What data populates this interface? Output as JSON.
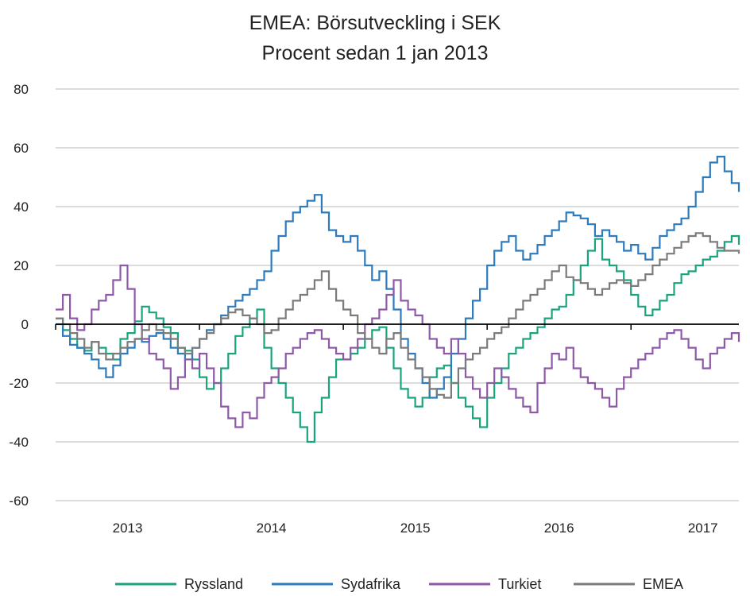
{
  "chart_data": {
    "type": "line",
    "title": "EMEA: Börsutveckling i SEK",
    "subtitle": "Procent sedan 1 jan 2013",
    "ylim": [
      -60,
      80
    ],
    "yticks": [
      "80",
      "60",
      "40",
      "20",
      "0",
      "-20",
      "-40",
      "-60"
    ],
    "ytick_values": [
      80,
      60,
      40,
      20,
      0,
      -20,
      -40,
      -60
    ],
    "xlim": [
      2013.0,
      2017.75
    ],
    "xticks": [
      {
        "label": "2013",
        "value": 2013.5
      },
      {
        "label": "2014",
        "value": 2014.5
      },
      {
        "label": "2015",
        "value": 2015.5
      },
      {
        "label": "2016",
        "value": 2016.5
      },
      {
        "label": "2017",
        "value": 2017.5
      }
    ],
    "year_boundaries": [
      2014,
      2015,
      2016,
      2017
    ],
    "grid": true,
    "zero_line": true,
    "legend_position": "bottom",
    "series": [
      {
        "name": "Ryssland",
        "color": "#1aa47e",
        "x": [
          2013.0,
          2013.05,
          2013.1,
          2013.15,
          2013.2,
          2013.25,
          2013.3,
          2013.35,
          2013.4,
          2013.45,
          2013.5,
          2013.55,
          2013.6,
          2013.65,
          2013.7,
          2013.75,
          2013.8,
          2013.85,
          2013.9,
          2013.95,
          2014.0,
          2014.05,
          2014.1,
          2014.15,
          2014.2,
          2014.25,
          2014.3,
          2014.35,
          2014.4,
          2014.45,
          2014.5,
          2014.55,
          2014.6,
          2014.65,
          2014.7,
          2014.75,
          2014.8,
          2014.85,
          2014.9,
          2014.95,
          2015.0,
          2015.05,
          2015.1,
          2015.15,
          2015.2,
          2015.25,
          2015.3,
          2015.35,
          2015.4,
          2015.45,
          2015.5,
          2015.55,
          2015.6,
          2015.65,
          2015.7,
          2015.75,
          2015.8,
          2015.85,
          2015.9,
          2015.95,
          2016.0,
          2016.05,
          2016.1,
          2016.15,
          2016.2,
          2016.25,
          2016.3,
          2016.35,
          2016.4,
          2016.45,
          2016.5,
          2016.55,
          2016.6,
          2016.65,
          2016.7,
          2016.75,
          2016.8,
          2016.85,
          2016.9,
          2016.95,
          2017.0,
          2017.05,
          2017.1,
          2017.15,
          2017.2,
          2017.25,
          2017.3,
          2017.35,
          2017.4,
          2017.45,
          2017.5,
          2017.55,
          2017.6,
          2017.65,
          2017.7,
          2017.75
        ],
        "y": [
          2,
          -2,
          -5,
          -8,
          -9,
          -6,
          -8,
          -10,
          -12,
          -5,
          -3,
          1,
          6,
          4,
          2,
          -1,
          -3,
          -8,
          -9,
          -12,
          -18,
          -22,
          -20,
          -15,
          -10,
          -4,
          -1,
          2,
          5,
          -8,
          -15,
          -20,
          -25,
          -30,
          -35,
          -40,
          -30,
          -25,
          -18,
          -12,
          -12,
          -10,
          -8,
          -5,
          -2,
          -1,
          -8,
          -15,
          -22,
          -25,
          -28,
          -25,
          -18,
          -15,
          -14,
          -20,
          -25,
          -28,
          -32,
          -35,
          -25,
          -20,
          -15,
          -10,
          -8,
          -5,
          -3,
          -1,
          2,
          5,
          6,
          10,
          15,
          20,
          25,
          29,
          22,
          20,
          18,
          15,
          10,
          6,
          3,
          5,
          8,
          10,
          14,
          17,
          18,
          20,
          22,
          23,
          25,
          28,
          30,
          27
        ],
        "values": [
          2,
          -2,
          -5,
          -8,
          -9,
          -6,
          -8,
          -10,
          -12,
          -5,
          -3,
          1,
          6,
          4,
          2,
          -1,
          -3,
          -8,
          -9,
          -12,
          -18,
          -22,
          -20,
          -15,
          -10,
          -4,
          -1,
          2,
          5,
          -8,
          -15,
          -20,
          -25,
          -30,
          -35,
          -40,
          -30,
          -25,
          -18,
          -12,
          -12,
          -10,
          -8,
          -5,
          -2,
          -1,
          -8,
          -15,
          -22,
          -25,
          -28,
          -25,
          -18,
          -15,
          -14,
          -20,
          -25,
          -28,
          -32,
          -35,
          -25,
          -20,
          -15,
          -10,
          -8,
          -5,
          -3,
          -1,
          2,
          5,
          6,
          10,
          15,
          20,
          25,
          29,
          22,
          20,
          18,
          15,
          10,
          6,
          3,
          5,
          8,
          10,
          14,
          17,
          18,
          20,
          22,
          23,
          25,
          28,
          30,
          27
        ]
      },
      {
        "name": "Sydafrika",
        "color": "#2d7bbd",
        "x": [
          2013.0,
          2013.05,
          2013.1,
          2013.15,
          2013.2,
          2013.25,
          2013.3,
          2013.35,
          2013.4,
          2013.45,
          2013.5,
          2013.55,
          2013.6,
          2013.65,
          2013.7,
          2013.75,
          2013.8,
          2013.85,
          2013.9,
          2013.95,
          2014.0,
          2014.05,
          2014.1,
          2014.15,
          2014.2,
          2014.25,
          2014.3,
          2014.35,
          2014.4,
          2014.45,
          2014.5,
          2014.55,
          2014.6,
          2014.65,
          2014.7,
          2014.75,
          2014.8,
          2014.85,
          2014.9,
          2014.95,
          2015.0,
          2015.05,
          2015.1,
          2015.15,
          2015.2,
          2015.25,
          2015.3,
          2015.35,
          2015.4,
          2015.45,
          2015.5,
          2015.55,
          2015.6,
          2015.65,
          2015.7,
          2015.75,
          2015.8,
          2015.85,
          2015.9,
          2015.95,
          2016.0,
          2016.05,
          2016.1,
          2016.15,
          2016.2,
          2016.25,
          2016.3,
          2016.35,
          2016.4,
          2016.45,
          2016.5,
          2016.55,
          2016.6,
          2016.65,
          2016.7,
          2016.75,
          2016.8,
          2016.85,
          2016.9,
          2016.95,
          2017.0,
          2017.05,
          2017.1,
          2017.15,
          2017.2,
          2017.25,
          2017.3,
          2017.35,
          2017.4,
          2017.45,
          2017.5,
          2017.55,
          2017.6,
          2017.65,
          2017.7,
          2017.75
        ],
        "y": [
          0,
          -4,
          -7,
          -8,
          -10,
          -12,
          -15,
          -18,
          -14,
          -10,
          -8,
          -5,
          -6,
          -4,
          -3,
          -5,
          -8,
          -10,
          -12,
          -8,
          -5,
          -2,
          0,
          3,
          6,
          8,
          10,
          12,
          15,
          18,
          25,
          30,
          35,
          38,
          40,
          42,
          44,
          38,
          32,
          30,
          28,
          30,
          25,
          20,
          15,
          18,
          12,
          5,
          -5,
          -10,
          -15,
          -20,
          -25,
          -22,
          -18,
          -10,
          -5,
          2,
          8,
          12,
          20,
          25,
          28,
          30,
          25,
          22,
          24,
          27,
          30,
          32,
          35,
          38,
          37,
          36,
          34,
          30,
          32,
          30,
          28,
          25,
          27,
          24,
          22,
          26,
          30,
          32,
          34,
          36,
          40,
          45,
          50,
          55,
          57,
          52,
          48,
          45
        ],
        "values": [
          0,
          -4,
          -7,
          -8,
          -10,
          -12,
          -15,
          -18,
          -14,
          -10,
          -8,
          -5,
          -6,
          -4,
          -3,
          -5,
          -8,
          -10,
          -12,
          -8,
          -5,
          -2,
          0,
          3,
          6,
          8,
          10,
          12,
          15,
          18,
          25,
          30,
          35,
          38,
          40,
          42,
          44,
          38,
          32,
          30,
          28,
          30,
          25,
          20,
          15,
          18,
          12,
          5,
          -5,
          -10,
          -15,
          -20,
          -25,
          -22,
          -18,
          -10,
          -5,
          2,
          8,
          12,
          20,
          25,
          28,
          30,
          25,
          22,
          24,
          27,
          30,
          32,
          35,
          38,
          37,
          36,
          34,
          30,
          32,
          30,
          28,
          25,
          27,
          24,
          22,
          26,
          30,
          32,
          34,
          36,
          40,
          45,
          50,
          55,
          57,
          52,
          48,
          45
        ]
      },
      {
        "name": "Turkiet",
        "color": "#8e5aa8",
        "x": [
          2013.0,
          2013.05,
          2013.1,
          2013.15,
          2013.2,
          2013.25,
          2013.3,
          2013.35,
          2013.4,
          2013.45,
          2013.5,
          2013.55,
          2013.6,
          2013.65,
          2013.7,
          2013.75,
          2013.8,
          2013.85,
          2013.9,
          2013.95,
          2014.0,
          2014.05,
          2014.1,
          2014.15,
          2014.2,
          2014.25,
          2014.3,
          2014.35,
          2014.4,
          2014.45,
          2014.5,
          2014.55,
          2014.6,
          2014.65,
          2014.7,
          2014.75,
          2014.8,
          2014.85,
          2014.9,
          2014.95,
          2015.0,
          2015.05,
          2015.1,
          2015.15,
          2015.2,
          2015.25,
          2015.3,
          2015.35,
          2015.4,
          2015.45,
          2015.5,
          2015.55,
          2015.6,
          2015.65,
          2015.7,
          2015.75,
          2015.8,
          2015.85,
          2015.9,
          2015.95,
          2016.0,
          2016.05,
          2016.1,
          2016.15,
          2016.2,
          2016.25,
          2016.3,
          2016.35,
          2016.4,
          2016.45,
          2016.5,
          2016.55,
          2016.6,
          2016.65,
          2016.7,
          2016.75,
          2016.8,
          2016.85,
          2016.9,
          2016.95,
          2017.0,
          2017.05,
          2017.1,
          2017.15,
          2017.2,
          2017.25,
          2017.3,
          2017.35,
          2017.4,
          2017.45,
          2017.5,
          2017.55,
          2017.6,
          2017.65,
          2017.7,
          2017.75
        ],
        "y": [
          5,
          10,
          2,
          -2,
          0,
          5,
          8,
          10,
          15,
          20,
          12,
          0,
          -5,
          -10,
          -12,
          -15,
          -22,
          -18,
          -12,
          -15,
          -10,
          -15,
          -20,
          -28,
          -32,
          -35,
          -30,
          -32,
          -25,
          -20,
          -18,
          -15,
          -10,
          -8,
          -5,
          -3,
          -2,
          -5,
          -8,
          -10,
          -12,
          -8,
          -5,
          0,
          2,
          5,
          10,
          15,
          8,
          5,
          3,
          0,
          -5,
          -8,
          -10,
          -5,
          -10,
          -18,
          -22,
          -25,
          -20,
          -15,
          -18,
          -22,
          -25,
          -28,
          -30,
          -20,
          -15,
          -10,
          -12,
          -8,
          -15,
          -18,
          -20,
          -22,
          -25,
          -28,
          -22,
          -18,
          -15,
          -12,
          -10,
          -8,
          -5,
          -3,
          -2,
          -5,
          -8,
          -12,
          -15,
          -10,
          -8,
          -5,
          -3,
          -6
        ],
        "values": [
          5,
          10,
          2,
          -2,
          0,
          5,
          8,
          10,
          15,
          20,
          12,
          0,
          -5,
          -10,
          -12,
          -15,
          -22,
          -18,
          -12,
          -15,
          -10,
          -15,
          -20,
          -28,
          -32,
          -35,
          -30,
          -32,
          -25,
          -20,
          -18,
          -15,
          -10,
          -8,
          -5,
          -3,
          -2,
          -5,
          -8,
          -10,
          -12,
          -8,
          -5,
          0,
          2,
          5,
          10,
          15,
          8,
          5,
          3,
          0,
          -5,
          -8,
          -10,
          -5,
          -10,
          -18,
          -22,
          -25,
          -20,
          -15,
          -18,
          -22,
          -25,
          -28,
          -30,
          -20,
          -15,
          -10,
          -12,
          -8,
          -15,
          -18,
          -20,
          -22,
          -25,
          -28,
          -22,
          -18,
          -15,
          -12,
          -10,
          -8,
          -5,
          -3,
          -2,
          -5,
          -8,
          -12,
          -15,
          -10,
          -8,
          -5,
          -3,
          -6
        ]
      },
      {
        "name": "EMEA",
        "color": "#7b7b7b",
        "x": [
          2013.0,
          2013.05,
          2013.1,
          2013.15,
          2013.2,
          2013.25,
          2013.3,
          2013.35,
          2013.4,
          2013.45,
          2013.5,
          2013.55,
          2013.6,
          2013.65,
          2013.7,
          2013.75,
          2013.8,
          2013.85,
          2013.9,
          2013.95,
          2014.0,
          2014.05,
          2014.1,
          2014.15,
          2014.2,
          2014.25,
          2014.3,
          2014.35,
          2014.4,
          2014.45,
          2014.5,
          2014.55,
          2014.6,
          2014.65,
          2014.7,
          2014.75,
          2014.8,
          2014.85,
          2014.9,
          2014.95,
          2015.0,
          2015.05,
          2015.1,
          2015.15,
          2015.2,
          2015.25,
          2015.3,
          2015.35,
          2015.4,
          2015.45,
          2015.5,
          2015.55,
          2015.6,
          2015.65,
          2015.7,
          2015.75,
          2015.8,
          2015.85,
          2015.9,
          2015.95,
          2016.0,
          2016.05,
          2016.1,
          2016.15,
          2016.2,
          2016.25,
          2016.3,
          2016.35,
          2016.4,
          2016.45,
          2016.5,
          2016.55,
          2016.6,
          2016.65,
          2016.7,
          2016.75,
          2016.8,
          2016.85,
          2016.9,
          2016.95,
          2017.0,
          2017.05,
          2017.1,
          2017.15,
          2017.2,
          2017.25,
          2017.3,
          2017.35,
          2017.4,
          2017.45,
          2017.5,
          2017.55,
          2017.6,
          2017.65,
          2017.7,
          2017.75
        ],
        "y": [
          2,
          0,
          -3,
          -5,
          -8,
          -6,
          -10,
          -12,
          -10,
          -8,
          -6,
          -5,
          -2,
          0,
          -2,
          -3,
          -5,
          -8,
          -10,
          -8,
          -5,
          -3,
          0,
          2,
          4,
          5,
          3,
          2,
          0,
          -3,
          -2,
          2,
          5,
          8,
          10,
          12,
          15,
          18,
          12,
          8,
          5,
          3,
          -3,
          -5,
          -8,
          -10,
          -5,
          -3,
          -8,
          -12,
          -15,
          -18,
          -22,
          -24,
          -25,
          -20,
          -15,
          -12,
          -10,
          -8,
          -5,
          -3,
          -1,
          2,
          5,
          8,
          10,
          12,
          15,
          18,
          20,
          16,
          15,
          14,
          12,
          10,
          12,
          14,
          15,
          14,
          13,
          15,
          17,
          20,
          22,
          24,
          26,
          28,
          30,
          31,
          30,
          28,
          26,
          25,
          25,
          24
        ],
        "values": [
          2,
          0,
          -3,
          -5,
          -8,
          -6,
          -10,
          -12,
          -10,
          -8,
          -6,
          -5,
          -2,
          0,
          -2,
          -3,
          -5,
          -8,
          -10,
          -8,
          -5,
          -3,
          0,
          2,
          4,
          5,
          3,
          2,
          0,
          -3,
          -2,
          2,
          5,
          8,
          10,
          12,
          15,
          18,
          12,
          8,
          5,
          3,
          -3,
          -5,
          -8,
          -10,
          -5,
          -3,
          -8,
          -12,
          -15,
          -18,
          -22,
          -24,
          -25,
          -20,
          -15,
          -12,
          -10,
          -8,
          -5,
          -3,
          -1,
          2,
          5,
          8,
          10,
          12,
          15,
          18,
          20,
          16,
          15,
          14,
          12,
          10,
          12,
          14,
          15,
          14,
          13,
          15,
          17,
          20,
          22,
          24,
          26,
          28,
          30,
          31,
          30,
          28,
          26,
          25,
          25,
          24
        ]
      }
    ]
  }
}
